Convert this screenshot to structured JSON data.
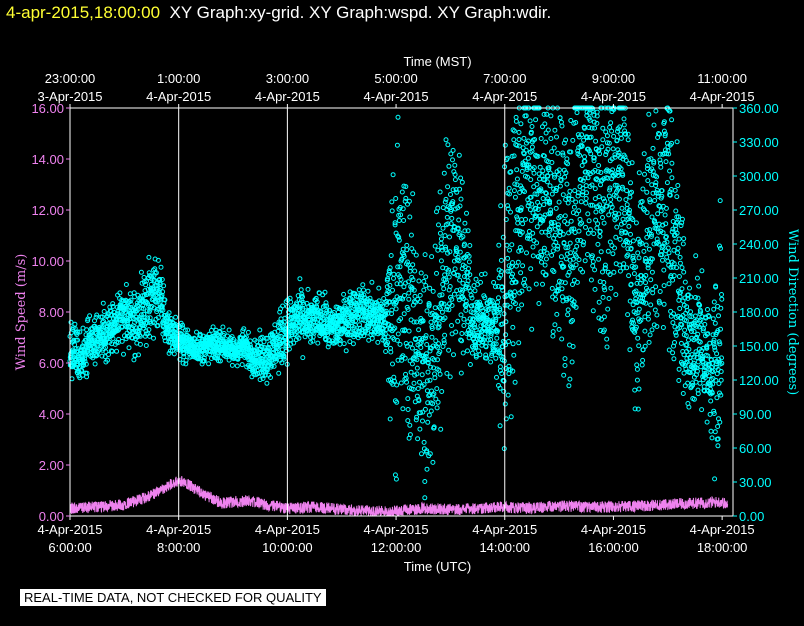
{
  "header": {
    "timestamp": "4-apr-2015,18:00:00",
    "graphs": "XY Graph:xy-grid.  XY Graph:wspd.  XY Graph:wdir."
  },
  "footer": {
    "notice": "REAL-TIME DATA, NOT CHECKED FOR QUALITY"
  },
  "colors": {
    "background": "#000000",
    "frame": "#ffffff",
    "wind_speed": "#ee82ee",
    "wind_direction": "#00ffff",
    "title_timestamp": "#ffff33"
  },
  "chart_data": {
    "type": "scatter",
    "top_axis_title": "Time (MST)",
    "xlabel": "Time (UTC)",
    "ylabel_left": "Wind Speed (m/s)",
    "ylabel_right": "Wind Direction (degrees)",
    "x_utc_hours_range": [
      6,
      18.2
    ],
    "ylim_left": [
      0,
      16
    ],
    "ylim_right": [
      0,
      360
    ],
    "grid_vertical_utc_hours": [
      8,
      10,
      14
    ],
    "top_ticks": [
      {
        "time": "23:00:00",
        "date": "3-Apr-2015",
        "utc_hour": 6
      },
      {
        "time": "1:00:00",
        "date": "4-Apr-2015",
        "utc_hour": 8
      },
      {
        "time": "3:00:00",
        "date": "4-Apr-2015",
        "utc_hour": 10
      },
      {
        "time": "5:00:00",
        "date": "4-Apr-2015",
        "utc_hour": 12
      },
      {
        "time": "7:00:00",
        "date": "4-Apr-2015",
        "utc_hour": 14
      },
      {
        "time": "9:00:00",
        "date": "4-Apr-2015",
        "utc_hour": 16
      },
      {
        "time": "11:00:00",
        "date": "4-Apr-2015",
        "utc_hour": 18
      }
    ],
    "bottom_ticks": [
      {
        "date": "4-Apr-2015",
        "time": "6:00:00",
        "utc_hour": 6
      },
      {
        "date": "4-Apr-2015",
        "time": "8:00:00",
        "utc_hour": 8
      },
      {
        "date": "4-Apr-2015",
        "time": "10:00:00",
        "utc_hour": 10
      },
      {
        "date": "4-Apr-2015",
        "time": "12:00:00",
        "utc_hour": 12
      },
      {
        "date": "4-Apr-2015",
        "time": "14:00:00",
        "utc_hour": 14
      },
      {
        "date": "4-Apr-2015",
        "time": "16:00:00",
        "utc_hour": 16
      },
      {
        "date": "4-Apr-2015",
        "time": "18:00:00",
        "utc_hour": 18
      }
    ],
    "left_ticks": [
      "0.00",
      "2.00",
      "4.00",
      "6.00",
      "8.00",
      "10.00",
      "12.00",
      "14.00",
      "16.00"
    ],
    "right_ticks": [
      "0.00",
      "30.00",
      "60.00",
      "90.00",
      "120.00",
      "150.00",
      "180.00",
      "210.00",
      "240.00",
      "270.00",
      "300.00",
      "330.00",
      "360.00"
    ],
    "series": [
      {
        "name": "Wind Speed",
        "axis": "left",
        "style": "line",
        "x_utc_hours": [
          6.0,
          6.5,
          7.0,
          7.5,
          7.8,
          8.0,
          8.2,
          8.5,
          8.8,
          9.0,
          9.3,
          9.6,
          10.0,
          10.5,
          11.0,
          11.5,
          11.9,
          12.0,
          12.5,
          13.0,
          13.5,
          14.0,
          14.5,
          15.0,
          15.5,
          16.0,
          16.5,
          17.0,
          17.5,
          18.0,
          18.1
        ],
        "values": [
          0.3,
          0.35,
          0.45,
          0.8,
          1.2,
          1.4,
          1.2,
          0.8,
          0.5,
          0.55,
          0.6,
          0.45,
          0.3,
          0.35,
          0.25,
          0.2,
          0.15,
          0.2,
          0.3,
          0.25,
          0.3,
          0.35,
          0.3,
          0.4,
          0.35,
          0.35,
          0.4,
          0.45,
          0.5,
          0.55,
          0.4
        ]
      },
      {
        "name": "Wind Direction",
        "axis": "right",
        "style": "markers",
        "x_utc_hours": [
          6.0,
          6.2,
          6.4,
          6.6,
          6.8,
          7.0,
          7.2,
          7.4,
          7.6,
          7.8,
          8.0,
          8.2,
          8.4,
          8.6,
          8.8,
          9.0,
          9.2,
          9.4,
          9.6,
          9.8,
          10.0,
          10.2,
          10.4,
          10.6,
          10.8,
          11.0,
          11.2,
          11.4,
          11.6,
          11.8,
          12.0,
          12.2,
          12.4,
          12.6,
          12.8,
          13.0,
          13.2,
          13.4,
          13.6,
          13.8,
          14.0,
          14.2,
          14.4,
          14.6,
          14.8,
          15.0,
          15.2,
          15.4,
          15.6,
          15.8,
          16.0,
          16.2,
          16.4,
          16.6,
          16.8,
          17.0,
          17.2,
          17.4,
          17.6,
          17.8,
          18.0
        ],
        "values": [
          150,
          140,
          155,
          160,
          165,
          175,
          170,
          185,
          200,
          165,
          155,
          150,
          148,
          150,
          152,
          145,
          150,
          140,
          140,
          150,
          165,
          175,
          170,
          175,
          165,
          170,
          180,
          180,
          175,
          170,
          200,
          190,
          150,
          110,
          200,
          250,
          220,
          175,
          170,
          165,
          185,
          260,
          300,
          290,
          280,
          260,
          230,
          300,
          310,
          250,
          300,
          300,
          180,
          240,
          250,
          300,
          200,
          150,
          155,
          120,
          170
        ],
        "spread_degrees": [
          25,
          25,
          25,
          25,
          28,
          28,
          28,
          32,
          40,
          20,
          15,
          15,
          15,
          15,
          15,
          15,
          15,
          18,
          22,
          25,
          28,
          28,
          25,
          22,
          22,
          22,
          25,
          25,
          25,
          28,
          160,
          120,
          90,
          140,
          120,
          100,
          90,
          40,
          35,
          40,
          150,
          150,
          120,
          120,
          110,
          110,
          130,
          120,
          120,
          130,
          100,
          100,
          110,
          100,
          100,
          130,
          110,
          70,
          60,
          55,
          150
        ]
      }
    ]
  }
}
